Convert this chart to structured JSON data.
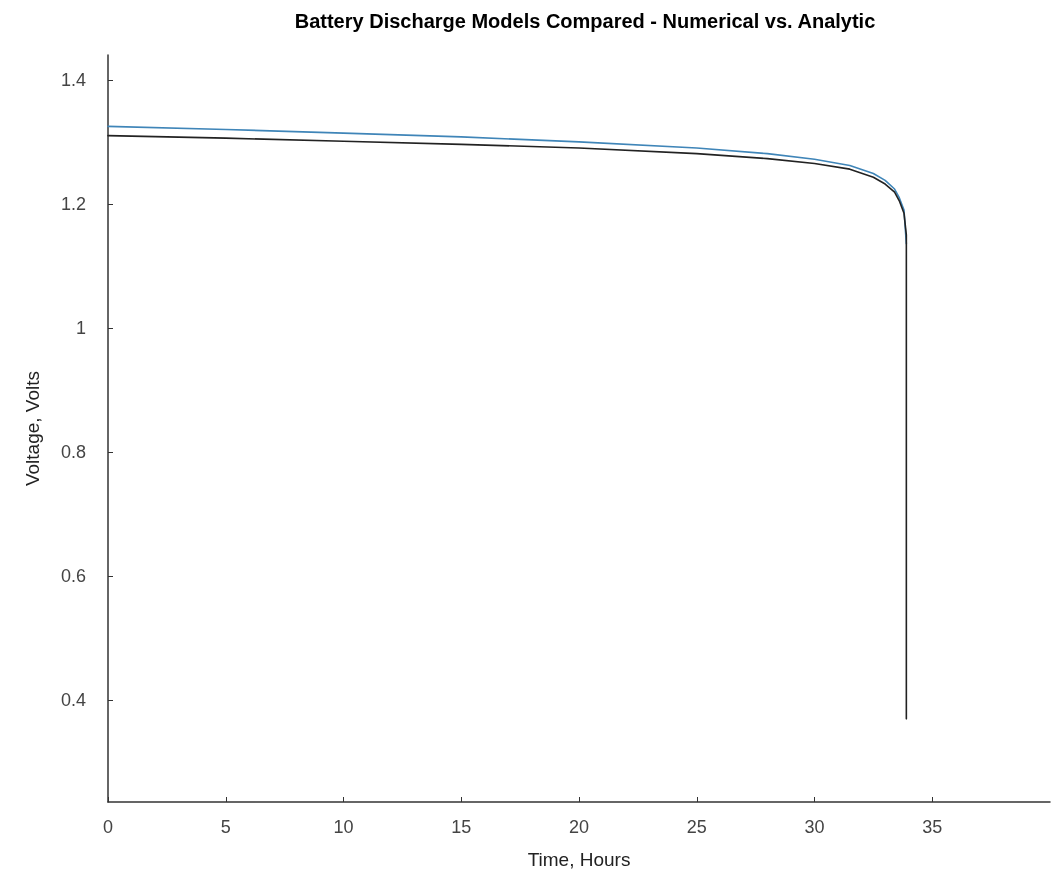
{
  "chart_data": {
    "type": "line",
    "title": "Battery Discharge Models Compared - Numerical vs. Analytic",
    "xlabel": "Time, Hours",
    "ylabel": "Voltage, Volts",
    "xlim": [
      0,
      40
    ],
    "xticks": [
      0,
      5,
      10,
      15,
      20,
      25,
      30,
      35
    ],
    "ylim": [
      0.236,
      1.44
    ],
    "yticks": [
      0.4,
      0.6,
      0.8,
      {
        "value": 1,
        "label": "1"
      },
      1.2,
      1.4
    ],
    "grid": false,
    "marker": "none",
    "line_style": "solid",
    "series": [
      {
        "color": "#3f85b8",
        "x": [
          0,
          5,
          10,
          15,
          20,
          25,
          28,
          30,
          31.5,
          32.5,
          33,
          33.4,
          33.6,
          33.8,
          33.9
        ],
        "values": [
          1.325,
          1.32,
          1.314,
          1.308,
          1.3,
          1.29,
          1.281,
          1.272,
          1.262,
          1.249,
          1.238,
          1.224,
          1.21,
          1.19,
          1.136
        ]
      },
      {
        "color": "#222222",
        "x": [
          0,
          5,
          10,
          15,
          20,
          25,
          28,
          30,
          31.5,
          32.5,
          33,
          33.4,
          33.6,
          33.8,
          33.9,
          33.9
        ],
        "values": [
          1.31,
          1.306,
          1.301,
          1.296,
          1.29,
          1.281,
          1.273,
          1.265,
          1.256,
          1.243,
          1.232,
          1.219,
          1.205,
          1.185,
          1.15,
          0.37
        ]
      }
    ]
  }
}
